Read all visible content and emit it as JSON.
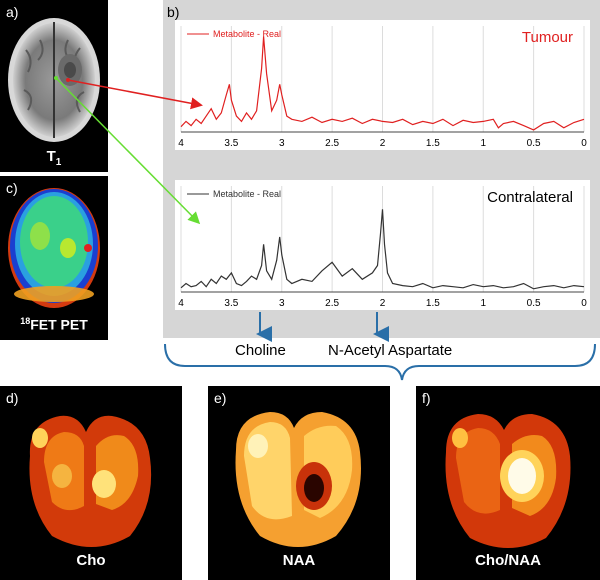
{
  "panels": {
    "a": {
      "label": "a)",
      "caption": "T",
      "caption_sub": "1"
    },
    "b": {
      "label": "b)"
    },
    "c": {
      "label": "c)",
      "caption_sup": "18",
      "caption": "FET PET"
    },
    "d": {
      "label": "d)",
      "caption": "Cho"
    },
    "e": {
      "label": "e)",
      "caption": "NAA"
    },
    "f": {
      "label": "f)",
      "caption": "Cho/NAA"
    }
  },
  "spectra": {
    "top": {
      "title": "Tumour",
      "legend": "Metabolite - Real",
      "color": "#e02020"
    },
    "bottom": {
      "title": "Contralateral",
      "legend": "Metabolite - Real",
      "color": "#333333"
    }
  },
  "annotations": {
    "choline": "Choline",
    "naa": "N-Acetyl Aspartate"
  },
  "colors": {
    "tumour_arrow": "#e02020",
    "contralateral_arrow": "#66dd33",
    "marker_arrow": "#2a6fa8",
    "brace": "#2a6fa8"
  },
  "chart_data": [
    {
      "type": "line",
      "title": "Tumour",
      "series": [
        {
          "name": "Metabolite - Real",
          "x": [
            4.0,
            3.95,
            3.9,
            3.85,
            3.8,
            3.75,
            3.7,
            3.65,
            3.6,
            3.55,
            3.52,
            3.5,
            3.45,
            3.4,
            3.35,
            3.3,
            3.25,
            3.2,
            3.18,
            3.15,
            3.1,
            3.05,
            3.02,
            3.0,
            2.95,
            2.9,
            2.8,
            2.7,
            2.6,
            2.5,
            2.4,
            2.3,
            2.2,
            2.1,
            2.0,
            1.9,
            1.8,
            1.7,
            1.6,
            1.5,
            1.4,
            1.3,
            1.2,
            1.1,
            1.0,
            0.9,
            0.85,
            0.8,
            0.7,
            0.6,
            0.5,
            0.4,
            0.3,
            0.2,
            0.1,
            0.0
          ],
          "y": [
            0.05,
            0.1,
            0.06,
            0.12,
            0.08,
            0.15,
            0.22,
            0.12,
            0.18,
            0.35,
            0.45,
            0.3,
            0.15,
            0.1,
            0.18,
            0.12,
            0.2,
            0.6,
            0.9,
            0.55,
            0.2,
            0.3,
            0.45,
            0.35,
            0.15,
            0.12,
            0.1,
            0.14,
            0.09,
            0.12,
            0.1,
            0.13,
            0.08,
            0.12,
            0.1,
            0.09,
            0.12,
            0.07,
            0.1,
            0.08,
            0.12,
            0.06,
            0.11,
            0.09,
            0.1,
            0.12,
            0.04,
            0.08,
            0.1,
            0.06,
            0.02,
            0.08,
            0.1,
            0.04,
            0.09,
            0.12
          ]
        }
      ],
      "xlim": [
        4,
        0
      ],
      "xticks": [
        "4",
        "3.5",
        "3",
        "2.5",
        "2",
        "1.5",
        "1",
        "0.5",
        "0"
      ],
      "grid": true,
      "legend": "top-left"
    },
    {
      "type": "line",
      "title": "Contralateral",
      "series": [
        {
          "name": "Metabolite - Real",
          "x": [
            4.0,
            3.95,
            3.9,
            3.85,
            3.8,
            3.75,
            3.7,
            3.65,
            3.6,
            3.55,
            3.5,
            3.45,
            3.4,
            3.35,
            3.3,
            3.25,
            3.2,
            3.18,
            3.15,
            3.1,
            3.05,
            3.02,
            3.0,
            2.95,
            2.9,
            2.8,
            2.7,
            2.6,
            2.5,
            2.4,
            2.3,
            2.2,
            2.1,
            2.05,
            2.02,
            2.0,
            1.98,
            1.95,
            1.9,
            1.8,
            1.7,
            1.6,
            1.5,
            1.4,
            1.3,
            1.2,
            1.1,
            1.0,
            0.9,
            0.8,
            0.7,
            0.6,
            0.5,
            0.4,
            0.3,
            0.2,
            0.1,
            0.0
          ],
          "y": [
            0.04,
            0.08,
            0.05,
            0.06,
            0.1,
            0.05,
            0.12,
            0.08,
            0.15,
            0.12,
            0.18,
            0.08,
            0.06,
            0.1,
            0.15,
            0.12,
            0.25,
            0.45,
            0.2,
            0.12,
            0.3,
            0.52,
            0.35,
            0.12,
            0.08,
            0.12,
            0.1,
            0.2,
            0.28,
            0.15,
            0.22,
            0.12,
            0.18,
            0.25,
            0.55,
            0.78,
            0.45,
            0.18,
            0.08,
            0.06,
            0.05,
            0.08,
            0.04,
            0.06,
            0.05,
            0.04,
            0.07,
            0.05,
            0.06,
            0.04,
            0.05,
            0.08,
            0.03,
            0.05,
            0.06,
            0.04,
            0.06,
            0.05
          ]
        }
      ],
      "xlim": [
        4,
        0
      ],
      "xticks": [
        "4",
        "3.5",
        "3",
        "2.5",
        "2",
        "1.5",
        "1",
        "0.5",
        "0"
      ],
      "grid": true,
      "legend": "top-left"
    }
  ]
}
